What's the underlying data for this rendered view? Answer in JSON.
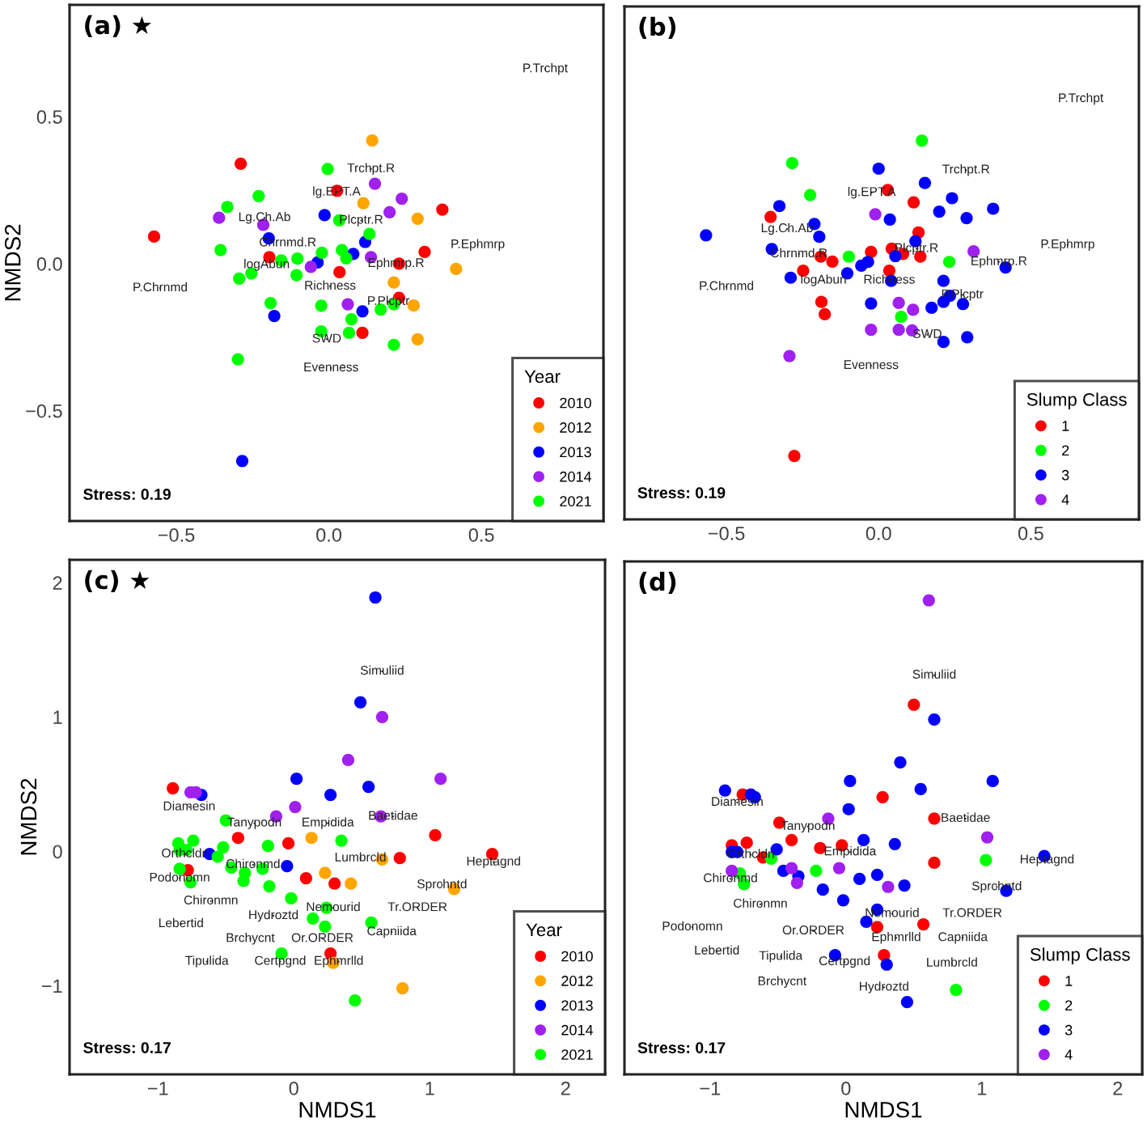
{
  "chart_data": [
    {
      "type": "scatter",
      "title": "(a) ★",
      "ylabel": "NMDS2",
      "legend_title": "Year",
      "legend": "bottom right",
      "marker": "circle",
      "xlim": [
        -0.85,
        0.9
      ],
      "ylim": [
        -0.875,
        0.88
      ],
      "xticks": [
        {
          "value": -0.5,
          "label": "−0.5"
        },
        {
          "value": 0,
          "label": "0.0"
        },
        0.5
      ],
      "yticks": [
        {
          "value": -0.5,
          "label": "−0.5"
        },
        {
          "value": 0,
          "label": "0.0"
        },
        0.5
      ],
      "series": [
        {
          "name": "2010",
          "color": "#ff0000",
          "x": [
            -0.289,
            -0.573,
            0.027,
            0.372,
            0.314,
            0.23,
            0.035,
            -0.195,
            0.23,
            0.11
          ],
          "values": [
            0.34,
            0.092,
            0.248,
            0.184,
            0.04,
            0.0,
            -0.029,
            0.022,
            -0.116,
            -0.235
          ]
        },
        {
          "name": "2012",
          "color": "#ffa500",
          "x": [
            0.142,
            0.113,
            0.291,
            0.417,
            0.213,
            0.278,
            0.291
          ],
          "values": [
            0.419,
            0.206,
            0.153,
            -0.018,
            -0.064,
            -0.142,
            -0.257
          ]
        },
        {
          "name": "2013",
          "color": "#0000ff",
          "x": [
            -0.014,
            -0.197,
            -0.037,
            0.08,
            0.119,
            0.11,
            -0.179,
            -0.284
          ],
          "values": [
            0.165,
            0.086,
            0.004,
            0.033,
            0.074,
            -0.162,
            -0.178,
            -0.671
          ]
        },
        {
          "name": "2014",
          "color": "#a020f0",
          "x": [
            0.151,
            0.239,
            0.199,
            -0.36,
            -0.215,
            -0.059,
            0.138,
            0.062
          ],
          "values": [
            0.272,
            0.221,
            0.175,
            0.156,
            0.132,
            -0.011,
            0.022,
            -0.138
          ]
        },
        {
          "name": "2021",
          "color": "#00ff00",
          "x": [
            -0.004,
            -0.23,
            -0.333,
            -0.355,
            0.034,
            0.133,
            -0.156,
            -0.103,
            -0.023,
            0.043,
            0.057,
            -0.106,
            -0.254,
            -0.294,
            -0.191,
            -0.025,
            0.074,
            0.17,
            0.213,
            -0.025,
            0.066,
            0.213,
            -0.298
          ],
          "values": [
            0.322,
            0.23,
            0.193,
            0.046,
            0.147,
            0.101,
            0.011,
            0.017,
            0.037,
            0.046,
            0.018,
            -0.039,
            -0.033,
            -0.051,
            -0.134,
            -0.143,
            -0.189,
            -0.156,
            -0.138,
            -0.23,
            -0.235,
            -0.276,
            -0.325
          ]
        },
        {
          "marker": "none",
          "color": "#222222",
          "x": [
            0.709,
            0.138,
            0.025,
            -0.211,
            0.106,
            -0.135,
            0.488,
            -0.204,
            0.22,
            -0.553,
            0.004,
            0.195,
            -0.007,
            0.007
          ],
          "values": [
            0.662,
            0.322,
            0.243,
            0.156,
            0.147,
            0.07,
            0.064,
            -0.004,
            0.0,
            -0.083,
            -0.077,
            -0.129,
            -0.257,
            -0.355
          ],
          "value_labels": [
            "P.Trchpt",
            "Trchpt.R",
            "lg.EPT.A",
            "Lg.Ch.Ab",
            "Plcptr.R",
            "Chrnmd.R",
            "P.Ephmrp",
            "logAbun",
            "Ephmrp.R",
            "P.Chrnmd",
            "Richness",
            "P.Plcptr",
            "SWD",
            "Evenness"
          ]
        }
      ],
      "annotations": [
        "Stress: 0.19"
      ]
    },
    {
      "type": "scatter",
      "title": "(b)",
      "legend_title": "Slump Class",
      "legend": "bottom right",
      "marker": "circle",
      "tick_labels": "x",
      "xlim": [
        -0.835,
        0.855
      ],
      "ylim": [
        -0.875,
        0.88
      ],
      "xticks": [
        {
          "value": -0.5,
          "label": "−0.5"
        },
        {
          "value": 0,
          "label": "0.0"
        },
        0.5
      ],
      "series": [
        {
          "name": "1",
          "color": "#ff0000",
          "x": [
            -0.355,
            0.03,
            0.115,
            0.131,
            -0.025,
            0.043,
            0.08,
            0.137,
            -0.19,
            -0.152,
            -0.248,
            0.035,
            -0.188,
            -0.177,
            -0.277
          ],
          "values": [
            0.16,
            0.252,
            0.21,
            0.107,
            0.04,
            0.051,
            0.033,
            0.024,
            0.024,
            0.007,
            -0.024,
            -0.024,
            -0.131,
            -0.173,
            -0.658
          ]
        },
        {
          "name": "2",
          "color": "#00ff00",
          "x": [
            0.142,
            -0.284,
            -0.225,
            -0.098,
            0.232,
            0.074
          ],
          "values": [
            0.421,
            0.344,
            0.235,
            0.024,
            0.006,
            -0.182
          ]
        },
        {
          "name": "3",
          "color": "#0000ff",
          "x": [
            -0.567,
            0.0,
            0.152,
            -0.326,
            0.241,
            0.376,
            -0.211,
            -0.195,
            0.037,
            0.199,
            0.289,
            0.121,
            -0.351,
            -0.057,
            -0.035,
            -0.103,
            0.055,
            -0.289,
            0.041,
            0.213,
            0.417,
            -0.025,
            0.174,
            0.213,
            0.234,
            0.277,
            0.213,
            0.291
          ],
          "values": [
            0.097,
            0.325,
            0.276,
            0.197,
            0.224,
            0.188,
            0.136,
            0.092,
            0.151,
            0.178,
            0.156,
            0.077,
            0.05,
            -0.007,
            0.006,
            -0.033,
            0.026,
            -0.048,
            -0.059,
            -0.059,
            -0.013,
            -0.136,
            -0.151,
            -0.131,
            -0.11,
            -0.138,
            -0.268,
            -0.252
          ]
        },
        {
          "name": "4",
          "color": "#a020f0",
          "x": [
            -0.011,
            0.312,
            0.066,
            0.113,
            -0.025,
            0.066,
            0.11,
            -0.293
          ],
          "values": [
            0.169,
            0.042,
            -0.134,
            -0.158,
            -0.226,
            -0.226,
            -0.228,
            -0.316
          ]
        },
        {
          "marker": "none",
          "color": "#222222",
          "x": [
            0.664,
            0.287,
            -0.023,
            -0.301,
            -0.262,
            0.124,
            0.621,
            0.395,
            -0.5,
            -0.181,
            0.035,
            0.275,
            0.16,
            -0.025
          ],
          "values": [
            0.564,
            0.32,
            0.243,
            0.119,
            0.033,
            0.051,
            0.064,
            0.006,
            -0.079,
            -0.057,
            -0.057,
            -0.107,
            -0.243,
            -0.349
          ],
          "value_labels": [
            "P.Trchpt",
            "Trchpt.R",
            "lg.EPT.A",
            "Lg.Ch.Ab",
            "Chrnmd.R",
            "Plcptr.R",
            "P.Ephmrp",
            "Ephmrp.R",
            "P.Chrnmd",
            "logAbun",
            "Richness",
            "P.Plcptr",
            "SWD",
            "Evenness"
          ]
        }
      ],
      "annotations": [
        "Stress: 0.19"
      ]
    },
    {
      "type": "scatter",
      "title": "(c) ★",
      "xlabel": "NMDS1",
      "ylabel": "NMDS2",
      "legend_title": "Year",
      "legend": "bottom right",
      "marker": "circle",
      "xlim": [
        -1.65,
        2.29
      ],
      "ylim": [
        -1.66,
        2.17
      ],
      "xticks": [
        {
          "value": -1,
          "label": "−1"
        },
        0,
        1,
        2
      ],
      "yticks": [
        {
          "value": -1,
          "label": "−1"
        },
        0,
        1,
        2
      ],
      "series": [
        {
          "name": "2010",
          "color": "#ff0000",
          "x": [
            -0.89,
            -0.41,
            -0.04,
            1.04,
            0.78,
            1.46,
            -0.78,
            0.09,
            0.3,
            0.27
          ],
          "values": [
            0.47,
            0.1,
            0.06,
            0.12,
            -0.05,
            -0.02,
            -0.14,
            -0.2,
            -0.24,
            -0.76
          ]
        },
        {
          "name": "2012",
          "color": "#ffa500",
          "x": [
            0.13,
            0.65,
            0.23,
            0.42,
            1.18,
            0.29,
            0.8
          ],
          "values": [
            0.1,
            -0.06,
            -0.16,
            -0.24,
            -0.28,
            -0.83,
            -1.02
          ]
        },
        {
          "name": "2013",
          "color": "#0000ff",
          "x": [
            0.6,
            0.49,
            0.02,
            0.55,
            0.27,
            -0.68,
            -0.62,
            -0.05
          ],
          "values": [
            1.89,
            1.11,
            0.54,
            0.48,
            0.42,
            0.42,
            -0.02,
            -0.11
          ]
        },
        {
          "name": "2014",
          "color": "#a020f0",
          "x": [
            0.65,
            0.4,
            1.08,
            -0.76,
            -0.72,
            -0.13,
            0.01,
            0.64
          ],
          "values": [
            1.0,
            0.68,
            0.54,
            0.44,
            0.44,
            0.26,
            0.33,
            0.26
          ]
        },
        {
          "name": "2021",
          "color": "#00ff00",
          "x": [
            -0.5,
            -0.74,
            -0.85,
            -0.84,
            -0.79,
            -0.52,
            -0.56,
            -0.19,
            0.35,
            -0.46,
            -0.36,
            -0.37,
            -0.23,
            -0.84,
            -0.76,
            -0.18,
            -0.02,
            0.24,
            0.14,
            0.23,
            0.57,
            -0.09,
            0.45
          ],
          "values": [
            0.23,
            0.08,
            0.06,
            0.01,
            0.01,
            0.03,
            -0.04,
            0.04,
            0.08,
            -0.12,
            -0.16,
            -0.22,
            -0.13,
            -0.13,
            -0.23,
            -0.26,
            -0.35,
            -0.42,
            -0.5,
            -0.56,
            -0.53,
            -0.76,
            -1.11
          ]
        },
        {
          "marker": "none",
          "color": "#222222",
          "x": [
            0.65,
            -0.77,
            -0.29,
            0.25,
            0.73,
            -0.8,
            -0.3,
            0.49,
            1.47,
            -0.84,
            1.09,
            -0.61,
            0.29,
            0.91,
            -0.15,
            -0.83,
            0.72,
            -0.32,
            0.21,
            -0.64,
            -0.1,
            0.33
          ],
          "values": [
            1.34,
            0.33,
            0.21,
            0.21,
            0.26,
            -0.02,
            -0.1,
            -0.05,
            -0.08,
            -0.2,
            -0.25,
            -0.37,
            -0.42,
            -0.42,
            -0.48,
            -0.54,
            -0.6,
            -0.65,
            -0.65,
            -0.82,
            -0.82,
            -0.82
          ],
          "value_labels": [
            "Simuliid",
            "Diamesin",
            "Tanypodn",
            "Empidida",
            "Baetidae",
            "Orthcldn",
            "Chironmd",
            "Lumbrcld",
            "Heptagnd",
            "Podonomn",
            "Sprchntd",
            "Chironmn",
            "Nemourid",
            "Tr.ORDER",
            "Hydroztd",
            "Lebertid",
            "Capniida",
            "Brchycnt",
            "Or.ORDER",
            "Tipulida",
            "Certpgnd",
            "Ephmrlld"
          ]
        }
      ],
      "annotations": [
        "Stress: 0.17"
      ]
    },
    {
      "type": "scatter",
      "title": "(d)",
      "xlabel": "NMDS1",
      "legend_title": "Slump Class",
      "legend": "bottom right",
      "marker": "circle",
      "tick_labels": "x",
      "xlim": [
        -1.63,
        2.18
      ],
      "ylim": [
        -1.66,
        2.17
      ],
      "xticks": [
        {
          "value": -1,
          "label": "−1"
        },
        0,
        1,
        2
      ],
      "series": [
        {
          "name": "1",
          "color": "#ff0000",
          "x": [
            0.5,
            0.27,
            0.65,
            0.65,
            -0.76,
            -0.49,
            -0.4,
            -0.19,
            -0.03,
            -0.84,
            -0.73,
            -0.61,
            0.23,
            0.57,
            0.28
          ],
          "values": [
            1.1,
            0.41,
            0.25,
            -0.08,
            0.43,
            0.22,
            0.09,
            0.03,
            0.05,
            0.05,
            0.07,
            -0.04,
            -0.56,
            -0.54,
            -0.77
          ]
        },
        {
          "name": "2",
          "color": "#00ff00",
          "x": [
            1.03,
            -0.55,
            -0.22,
            -0.78,
            -0.75,
            0.81
          ],
          "values": [
            -0.06,
            -0.05,
            -0.14,
            -0.16,
            -0.24,
            -1.03
          ]
        },
        {
          "name": "3",
          "color": "#0000ff",
          "x": [
            0.65,
            0.4,
            0.03,
            0.55,
            1.08,
            0.02,
            -0.89,
            -0.7,
            -0.67,
            0.13,
            0.36,
            -0.51,
            -0.84,
            -0.8,
            -0.46,
            -0.35,
            -0.17,
            0.1,
            0.23,
            0.43,
            -0.02,
            0.23,
            0.15,
            1.46,
            1.18,
            -0.08,
            0.3,
            0.45
          ],
          "values": [
            0.99,
            0.67,
            0.53,
            0.47,
            0.53,
            0.32,
            0.46,
            0.43,
            0.41,
            0.09,
            0.06,
            0.02,
            0.0,
            0.0,
            -0.14,
            -0.18,
            -0.28,
            -0.2,
            -0.17,
            -0.25,
            -0.36,
            -0.43,
            -0.52,
            -0.03,
            -0.29,
            -0.77,
            -0.84,
            -1.12
          ]
        },
        {
          "name": "4",
          "color": "#a020f0",
          "x": [
            0.61,
            -0.13,
            1.04,
            -0.05,
            -0.4,
            -0.84,
            -0.36,
            0.31
          ],
          "values": [
            1.88,
            0.25,
            0.11,
            -0.12,
            -0.12,
            -0.14,
            -0.23,
            -0.26
          ]
        },
        {
          "marker": "none",
          "color": "#222222",
          "x": [
            0.65,
            -0.8,
            0.88,
            -0.28,
            -0.7,
            0.03,
            1.48,
            -0.85,
            1.11,
            -0.63,
            0.34,
            0.93,
            -1.13,
            -0.24,
            0.37,
            0.86,
            -0.95,
            -0.48,
            -0.01,
            0.78,
            -0.47,
            0.28
          ],
          "values": [
            1.32,
            0.37,
            0.25,
            0.19,
            -0.02,
            0.0,
            -0.06,
            -0.2,
            -0.26,
            -0.39,
            -0.46,
            -0.46,
            -0.56,
            -0.59,
            -0.64,
            -0.64,
            -0.74,
            -0.78,
            -0.82,
            -0.83,
            -0.97,
            -1.01
          ],
          "value_labels": [
            "Simuliid",
            "Diamesin",
            "Baetidae",
            "Tanypodn",
            "Orthcldn",
            "Empidida",
            "Heptagnd",
            "Chironmd",
            "Sprchntd",
            "Chironmn",
            "Nemourid",
            "Tr.ORDER",
            "Podonomn",
            "Or.ORDER",
            "Ephmrlld",
            "Capniida",
            "Lebertid",
            "Tipulida",
            "Certpgnd",
            "Lumbrcld",
            "Brchycnt",
            "Hydroztd"
          ]
        }
      ],
      "annotations": [
        "Stress: 0.17"
      ]
    }
  ]
}
